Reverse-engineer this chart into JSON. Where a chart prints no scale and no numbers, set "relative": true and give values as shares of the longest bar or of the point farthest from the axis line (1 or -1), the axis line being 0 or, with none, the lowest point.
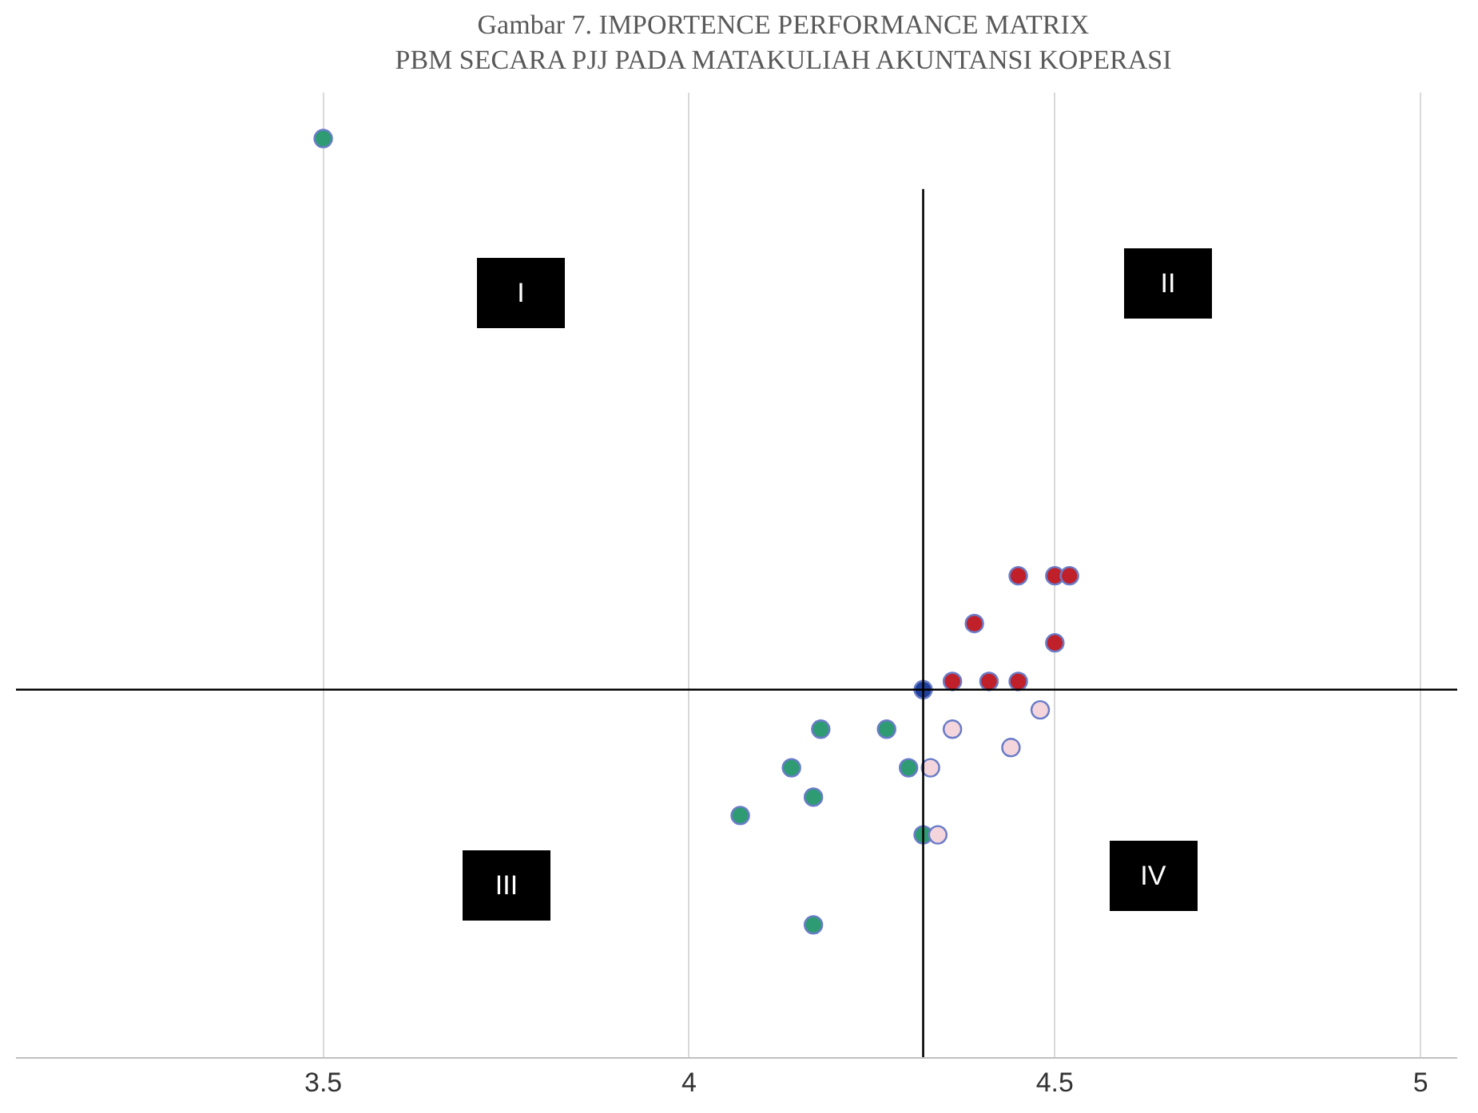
{
  "chart_data": {
    "type": "scatter",
    "title": "Gambar 7. IMPORTENCE PERFORMANCE MATRIX\nPBM SECARA PJJ PADA MATAKULIAH AKUNTANSI KOPERASI",
    "relative": true,
    "marker": "circle",
    "grid": "x",
    "xlim": [
      3.08,
      5.05
    ],
    "xticks": [
      3.5,
      4,
      4.5,
      5
    ],
    "series": [
      {
        "color": "#2e9b73",
        "x": [
          3.5,
          4.18,
          4.27,
          4.14,
          4.3,
          4.17,
          4.07,
          4.32,
          4.17
        ],
        "values": [
          1.0,
          0.357,
          0.357,
          0.315,
          0.315,
          0.283,
          0.263,
          0.242,
          0.144
        ]
      },
      {
        "color": "#f5d5dc",
        "x": [
          4.48,
          4.36,
          4.44,
          4.33,
          4.34
        ],
        "values": [
          0.378,
          0.357,
          0.337,
          0.315,
          0.242
        ]
      },
      {
        "color": "#c0202a",
        "x": [
          4.45,
          4.5,
          4.52,
          4.39,
          4.5,
          4.36,
          4.41,
          4.45
        ],
        "values": [
          0.524,
          0.524,
          0.524,
          0.472,
          0.451,
          0.409,
          0.409,
          0.409
        ]
      },
      {
        "color": "#1f3f9a",
        "x": [
          4.32
        ],
        "values": [
          0.4
        ]
      }
    ],
    "ref_lines": [
      {
        "axis": "x",
        "value": 4.32,
        "color": "#000000",
        "line_style": "solid"
      },
      {
        "axis": "y",
        "value": 0.4,
        "color": "#000000",
        "line_style": "solid"
      }
    ],
    "annotations": [
      "I",
      "II",
      "III",
      "IV"
    ]
  }
}
